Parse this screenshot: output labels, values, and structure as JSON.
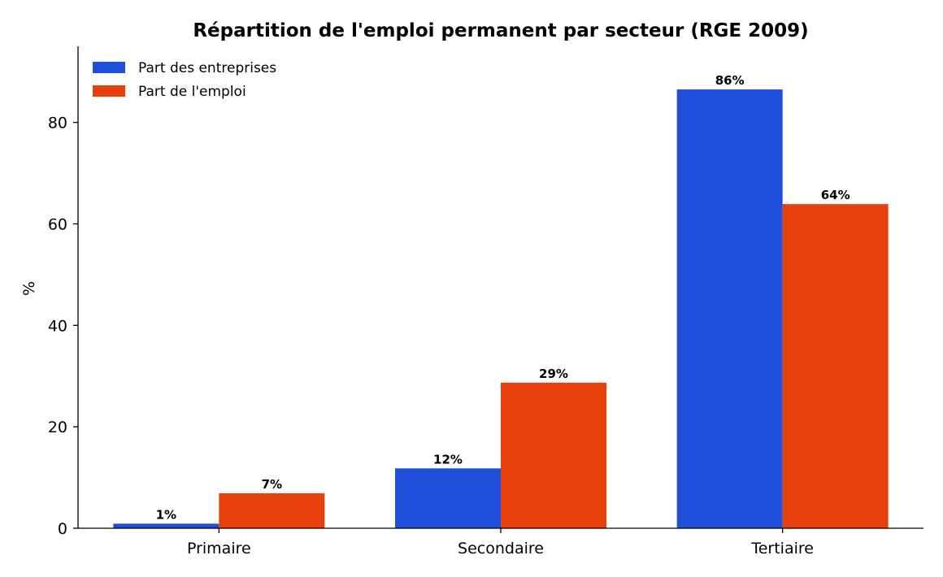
{
  "chart_data": {
    "type": "bar",
    "title": "Répartition de l'emploi permanent par secteur (RGE 2009)",
    "xlabel": "",
    "ylabel": "%",
    "categories": [
      "Primaire",
      "Secondaire",
      "Tertiaire"
    ],
    "series": [
      {
        "name": "Part des entreprises",
        "color": "#1f4fd8",
        "values": [
          0.9,
          11.8,
          86.5
        ],
        "labels": [
          "1%",
          "12%",
          "86%"
        ]
      },
      {
        "name": "Part de l'emploi",
        "color": "#e8400c",
        "values": [
          6.9,
          28.7,
          63.9
        ],
        "labels": [
          "7%",
          "29%",
          "64%"
        ]
      }
    ],
    "ylim": [
      0,
      95
    ],
    "yticks": [
      0,
      20,
      40,
      60,
      80
    ],
    "legend_position": "top-left",
    "grid": false
  }
}
